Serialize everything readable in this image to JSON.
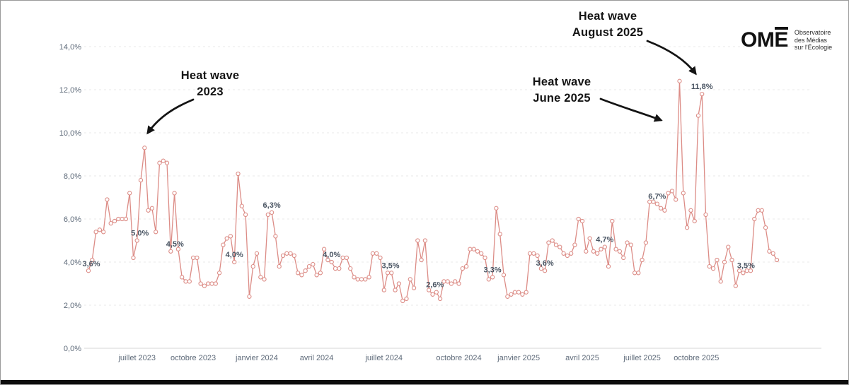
{
  "logo": {
    "om": "OM",
    "e": "E",
    "tagline1": "Observatoire",
    "tagline2": "des Médias",
    "tagline3": "sur l'Écologie"
  },
  "annotations": [
    {
      "line1": "Heat wave",
      "line2": "2023"
    },
    {
      "line1": "Heat wave",
      "line2": "June 2025"
    },
    {
      "line1": "Heat wave",
      "line2": "August 2025"
    }
  ],
  "chart_data": {
    "type": "line",
    "title": "",
    "xlabel": "",
    "ylabel": "",
    "ylim": [
      0,
      14
    ],
    "grid": "horizontal-dashed",
    "legend": null,
    "marker": "open-circle",
    "y_ticks": [
      {
        "v": 0,
        "label": "0,0%"
      },
      {
        "v": 2,
        "label": "2,0%"
      },
      {
        "v": 4,
        "label": "4,0%"
      },
      {
        "v": 6,
        "label": "6,0%"
      },
      {
        "v": 8,
        "label": "8,0%"
      },
      {
        "v": 10,
        "label": "10,0%"
      },
      {
        "v": 12,
        "label": "12,0%"
      },
      {
        "v": 14,
        "label": "14,0%"
      }
    ],
    "x_ticks": [
      {
        "label": "juillet 2023",
        "i": 13
      },
      {
        "label": "octobre 2023",
        "i": 28
      },
      {
        "label": "janvier 2024",
        "i": 45
      },
      {
        "label": "avril 2024",
        "i": 61
      },
      {
        "label": "juillet 2024",
        "i": 79
      },
      {
        "label": "octobre 2024",
        "i": 99
      },
      {
        "label": "janvier 2025",
        "i": 115
      },
      {
        "label": "avril 2025",
        "i": 132
      },
      {
        "label": "juillet 2025",
        "i": 148
      },
      {
        "label": "octobre 2025",
        "i": 162.5
      }
    ],
    "values": [
      3.6,
      4.1,
      5.4,
      5.5,
      5.4,
      6.9,
      5.8,
      5.9,
      6.0,
      6.0,
      6.0,
      7.2,
      4.2,
      5.0,
      7.8,
      9.3,
      6.4,
      6.5,
      5.4,
      8.6,
      8.7,
      8.6,
      4.5,
      7.2,
      4.6,
      3.3,
      3.1,
      3.1,
      4.2,
      4.2,
      3.0,
      2.9,
      3.0,
      3.0,
      3.0,
      3.5,
      4.8,
      5.1,
      5.2,
      4.0,
      8.1,
      6.6,
      6.2,
      2.4,
      3.8,
      4.4,
      3.3,
      3.2,
      6.2,
      6.3,
      5.2,
      3.8,
      4.3,
      4.4,
      4.4,
      4.3,
      3.5,
      3.4,
      3.6,
      3.8,
      3.9,
      3.4,
      3.5,
      4.6,
      4.1,
      4.0,
      3.7,
      3.7,
      4.2,
      4.2,
      3.7,
      3.3,
      3.2,
      3.2,
      3.2,
      3.3,
      4.4,
      4.4,
      4.2,
      2.7,
      3.5,
      3.5,
      2.7,
      3.0,
      2.2,
      2.3,
      3.2,
      2.8,
      5.0,
      4.1,
      5.0,
      2.7,
      2.5,
      2.6,
      2.3,
      3.1,
      3.1,
      3.0,
      3.1,
      3.0,
      3.7,
      3.8,
      4.6,
      4.6,
      4.5,
      4.4,
      4.2,
      3.2,
      3.3,
      6.5,
      5.3,
      3.4,
      2.4,
      2.5,
      2.6,
      2.6,
      2.5,
      2.6,
      4.4,
      4.4,
      4.3,
      3.7,
      3.6,
      4.9,
      5.0,
      4.8,
      4.7,
      4.4,
      4.3,
      4.4,
      4.8,
      6.0,
      5.9,
      4.5,
      5.1,
      4.5,
      4.4,
      4.6,
      4.7,
      3.8,
      5.9,
      4.6,
      4.5,
      4.2,
      4.9,
      4.8,
      3.5,
      3.5,
      4.1,
      4.9,
      6.8,
      6.8,
      6.7,
      6.5,
      6.4,
      7.2,
      7.3,
      6.9,
      12.4,
      7.2,
      5.6,
      6.4,
      5.9,
      10.8,
      11.8,
      6.2,
      3.8,
      3.7,
      4.1,
      3.1,
      4.0,
      4.7,
      4.1,
      2.9,
      3.6,
      3.5,
      3.6,
      3.6,
      6.0,
      6.4,
      6.4,
      5.6,
      4.5,
      4.4,
      4.1
    ],
    "point_labels": [
      {
        "i": 0,
        "t": "3,6%",
        "dx": 4,
        "dy": -6
      },
      {
        "i": 13,
        "t": "5,0%",
        "dx": 4
      },
      {
        "i": 22,
        "t": "4,5%",
        "dx": 6
      },
      {
        "i": 39,
        "t": "4,0%"
      },
      {
        "i": 49,
        "t": "6,3%"
      },
      {
        "i": 65,
        "t": "4,0%"
      },
      {
        "i": 80,
        "t": "3,5%",
        "dx": 4
      },
      {
        "i": 93,
        "t": "2,6%",
        "dx": -2
      },
      {
        "i": 108,
        "t": "3,3%"
      },
      {
        "i": 122,
        "t": "3,6%"
      },
      {
        "i": 138,
        "t": "4,7%"
      },
      {
        "i": 152,
        "t": "6,7%"
      },
      {
        "i": 164,
        "t": "11,8%"
      },
      {
        "i": 175,
        "t": "3,5%",
        "dx": 4
      }
    ],
    "colors": {
      "line": "#dc8c86",
      "marker_fill": "#ffffff",
      "axis_text": "#5f6b7a",
      "point_label": "#4a5563",
      "grid": "#e9e9e9",
      "zero_line": "#d4d4d4",
      "annotation": "#141414"
    }
  }
}
